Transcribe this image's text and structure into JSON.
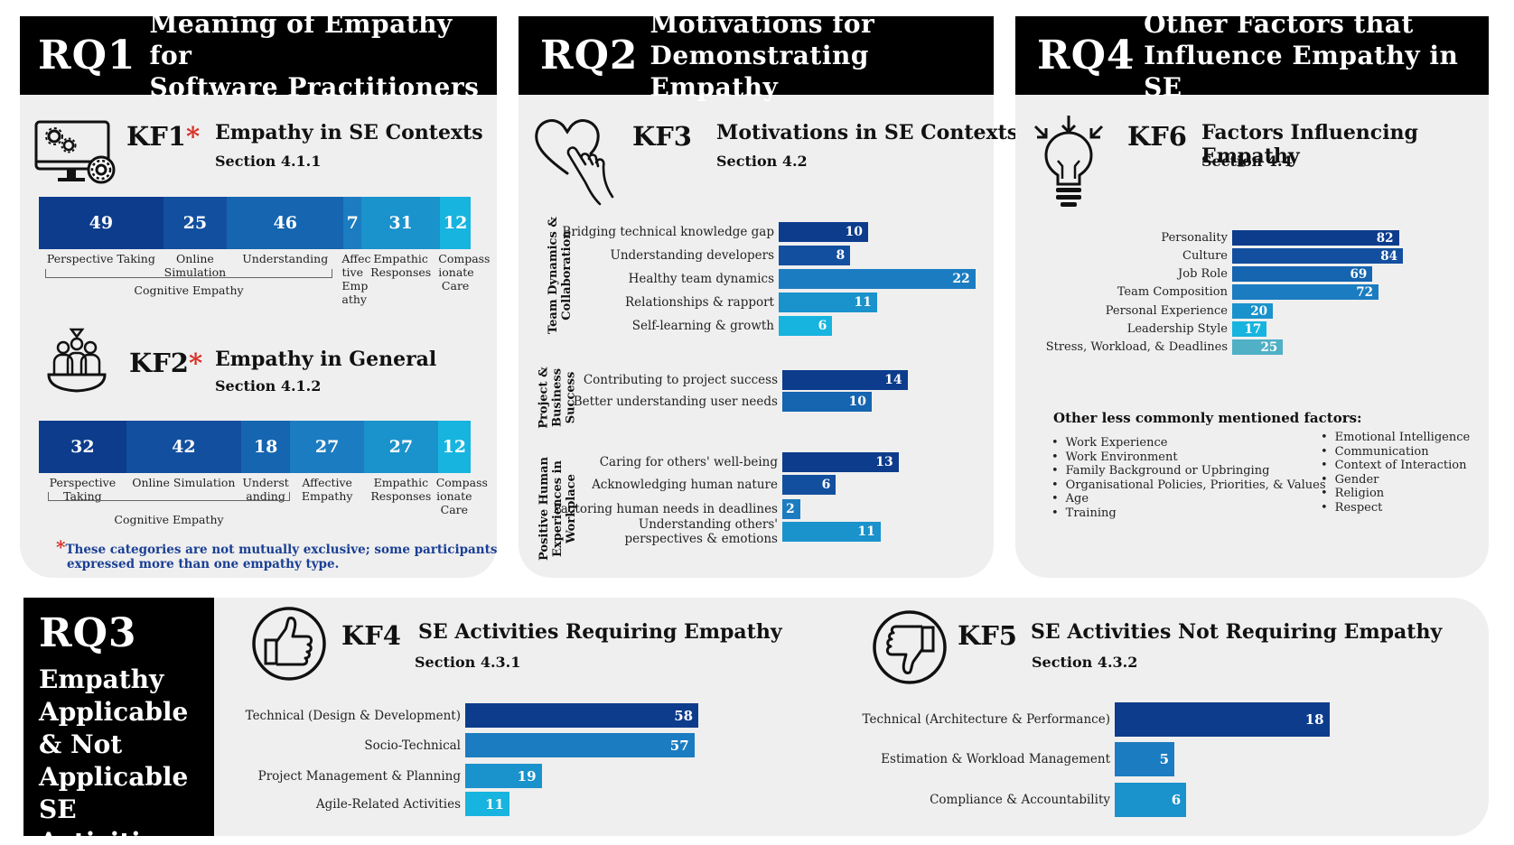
{
  "colors": {
    "navy": "#0d3c8c",
    "blue1": "#134f9f",
    "blue2": "#1565b0",
    "blue3": "#1b7cc1",
    "blue4": "#1a92cc",
    "cyan": "#17b4df",
    "teal": "#4fb0c6",
    "star": "#d93025",
    "note": "#1a3f94"
  },
  "rq1": {
    "num": "RQ1",
    "title_line1": "Meaning of Empathy for",
    "title_line2": "Software Practitioners",
    "kf1": {
      "id": "KF1",
      "star": "*",
      "title": "Empathy in SE Contexts",
      "section": "Section 4.1.1",
      "segments": [
        {
          "value": 49,
          "label": "Perspective Taking"
        },
        {
          "value": 25,
          "label": "Online Simulation"
        },
        {
          "value": 46,
          "label": "Understanding"
        },
        {
          "value": 7,
          "label": "Affec tive Emp athy"
        },
        {
          "value": 31,
          "label": "Empathic Responses"
        },
        {
          "value": 12,
          "label": "Compass ionate Care"
        }
      ],
      "bracket_label": "Cognitive Empathy"
    },
    "kf2": {
      "id": "KF2",
      "star": "*",
      "title": "Empathy in General",
      "section": "Section 4.1.2",
      "segments": [
        {
          "value": 32,
          "label": "Perspective Taking"
        },
        {
          "value": 42,
          "label": "Online Simulation"
        },
        {
          "value": 18,
          "label": "Underst anding"
        },
        {
          "value": 27,
          "label": "Affective Empathy"
        },
        {
          "value": 27,
          "label": "Empathic Responses"
        },
        {
          "value": 12,
          "label": "Compass ionate Care"
        }
      ],
      "bracket_label": "Cognitive Empathy"
    },
    "note_star": "*",
    "note_line1": "These categories are not mutually exclusive; some participants",
    "note_line2": "expressed more than one empathy type."
  },
  "rq2": {
    "num": "RQ2",
    "title_line1": "Motivations for",
    "title_line2": "Demonstrating Empathy",
    "kf3": {
      "id": "KF3",
      "title": "Motivations in SE Contexts",
      "section": "Section 4.2",
      "groups": [
        {
          "label_line1": "Team Dynamics &",
          "label_line2": "Collaboration",
          "bars": [
            {
              "label": "Bridging technical knowledge gap",
              "value": 10
            },
            {
              "label": "Understanding developers",
              "value": 8
            },
            {
              "label": "Healthy team dynamics",
              "value": 22
            },
            {
              "label": "Relationships & rapport",
              "value": 11
            },
            {
              "label": "Self-learning & growth",
              "value": 6
            }
          ]
        },
        {
          "label_line1": "Project &",
          "label_line2": "Business",
          "label_line3": "Success",
          "bars": [
            {
              "label": "Contributing to project success",
              "value": 14
            },
            {
              "label": "Better understanding user needs",
              "value": 10
            }
          ]
        },
        {
          "label_line1": "Positive Human",
          "label_line2": "Experiences in",
          "label_line3": "Workplace",
          "bars": [
            {
              "label": "Caring for others' well-being",
              "value": 13
            },
            {
              "label": "Acknowledging human nature",
              "value": 6
            },
            {
              "label": "Factoring human needs in deadlines",
              "value": 2
            },
            {
              "label_line1": "Understanding others'",
              "label_line2": "perspectives & emotions",
              "value": 11
            }
          ]
        }
      ]
    }
  },
  "rq4": {
    "num": "RQ4",
    "title_line1": "Other Factors that",
    "title_line2": "Influence Empathy in SE",
    "kf6": {
      "id": "KF6",
      "title": "Factors Influencing Empathy",
      "section": "Section 4.4",
      "bars": [
        {
          "label": "Personality",
          "value": 82
        },
        {
          "label": "Culture",
          "value": 84
        },
        {
          "label": "Job Role",
          "value": 69
        },
        {
          "label": "Team Composition",
          "value": 72
        },
        {
          "label": "Personal Experience",
          "value": 20
        },
        {
          "label": "Leadership Style",
          "value": 17
        },
        {
          "label": "Stress, Workload, & Deadlines",
          "value": 25
        }
      ],
      "other_heading": "Other less commonly mentioned factors:",
      "other_left": [
        "Work Experience",
        "Work Environment",
        "Family Background or Upbringing",
        "Organisational Policies, Priorities, & Values",
        "Age",
        "Training"
      ],
      "other_right": [
        "Emotional Intelligence",
        "Communication",
        "Context of Interaction",
        "Gender",
        "Religion",
        "Respect"
      ]
    }
  },
  "rq3": {
    "num": "RQ3",
    "title_lines": [
      "Empathy",
      "Applicable",
      "& Not",
      "Applicable",
      "SE Activities"
    ],
    "kf4": {
      "id": "KF4",
      "title": "SE Activities Requiring Empathy",
      "section": "Section 4.3.1",
      "bars": [
        {
          "label": "Technical (Design & Development)",
          "value": 58
        },
        {
          "label": "Socio-Technical",
          "value": 57
        },
        {
          "label": "Project Management & Planning",
          "value": 19
        },
        {
          "label": "Agile-Related Activities",
          "value": 11
        }
      ]
    },
    "kf5": {
      "id": "KF5",
      "title": "SE Activities Not Requiring Empathy",
      "section": "Section 4.3.2",
      "bars": [
        {
          "label": "Technical (Architecture & Performance)",
          "value": 18
        },
        {
          "label": "Estimation & Workload Management",
          "value": 5
        },
        {
          "label": "Compliance & Accountability",
          "value": 6
        }
      ]
    }
  },
  "icons": {
    "kf1": "computer-gears-icon",
    "kf2": "team-group-icon",
    "kf3": "heart-hand-icon",
    "kf4": "thumbs-up-icon",
    "kf5": "thumbs-down-icon",
    "kf6": "lightbulb-arrows-icon"
  }
}
